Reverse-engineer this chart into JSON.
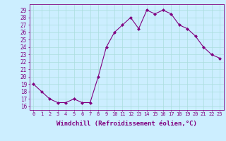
{
  "x": [
    0,
    1,
    2,
    3,
    4,
    5,
    6,
    7,
    8,
    9,
    10,
    11,
    12,
    13,
    14,
    15,
    16,
    17,
    18,
    19,
    20,
    21,
    22,
    23
  ],
  "y": [
    19,
    18,
    17,
    16.5,
    16.5,
    17,
    16.5,
    16.5,
    20,
    24,
    26,
    27,
    28,
    26.5,
    29,
    28.5,
    29,
    28.5,
    27,
    26.5,
    25.5,
    24,
    23,
    22.5
  ],
  "line_color": "#800080",
  "marker": "D",
  "marker_size": 2,
  "bg_color": "#cceeff",
  "grid_color": "#aadddd",
  "ylabel_values": [
    16,
    17,
    18,
    19,
    20,
    21,
    22,
    23,
    24,
    25,
    26,
    27,
    28,
    29
  ],
  "xlabel": "Windchill (Refroidissement éolien,°C)",
  "xlim": [
    -0.5,
    23.5
  ],
  "ylim": [
    15.5,
    29.8
  ],
  "xtick_labels": [
    "0",
    "1",
    "2",
    "3",
    "4",
    "5",
    "6",
    "7",
    "8",
    "9",
    "10",
    "11",
    "12",
    "13",
    "14",
    "15",
    "16",
    "17",
    "18",
    "19",
    "20",
    "21",
    "22",
    "23"
  ],
  "label_color": "#800080",
  "tick_color": "#800080",
  "xlabel_fontsize": 6.5,
  "ytick_fontsize": 5.5,
  "xtick_fontsize": 5.0
}
